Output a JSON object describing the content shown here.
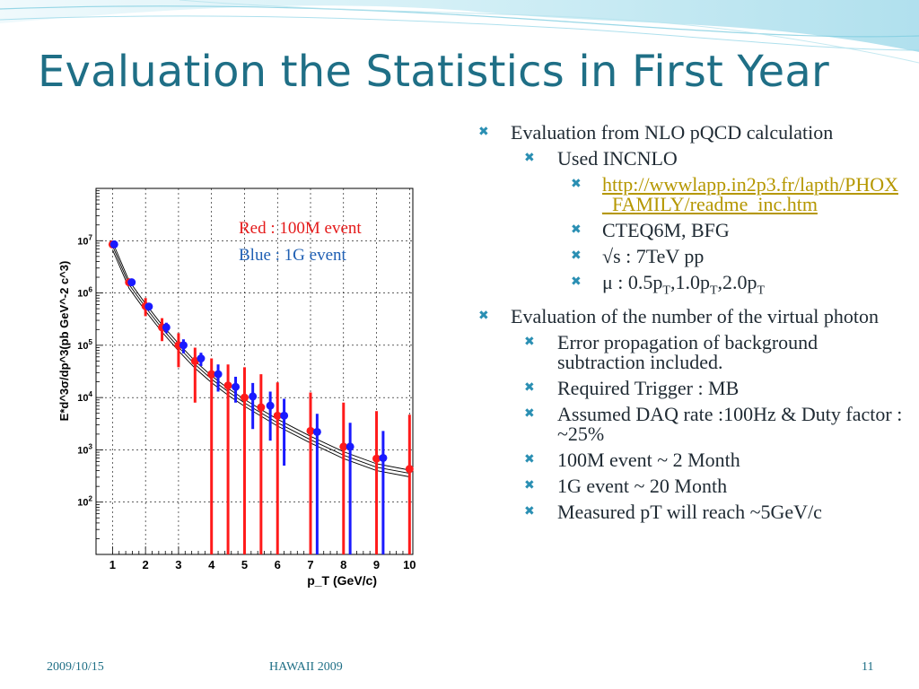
{
  "slide": {
    "title": "Evaluation the Statistics in First Year",
    "colors": {
      "title": "#1f6f86",
      "accent": "#2a8fb3",
      "link": "#b59700"
    },
    "bullets": {
      "b1": "Evaluation from NLO pQCD calculation",
      "b1_1": "Used INCNLO",
      "b1_1_1": "http://wwwlapp.in2p3.fr/lapth/PHOX_FAMILY/readme_inc.htm",
      "b1_1_2": "CTEQ6M, BFG",
      "b1_1_3": "√s : 7TeV pp",
      "b1_1_4": {
        "prefix": "μ : 0.5p",
        "sub": "T",
        "mid1": ",1.0p",
        "mid2": ",2.0p"
      },
      "b2": "Evaluation of the number of the virtual photon",
      "b2_1": "Error propagation of background subtraction included.",
      "b2_2": "Required Trigger : MB",
      "b2_3": "Assumed DAQ rate :100Hz & Duty factor : ~25%",
      "b2_4": "100M event ~ 2 Month",
      "b2_5": "1G event ~ 20 Month",
      "b2_6": "Measured pT will reach ~5GeV/c",
      "marker_icon": "x-bullet-icon"
    },
    "footer": {
      "date": "2009/10/15",
      "event": "HAWAII 2009",
      "page": "11"
    }
  },
  "chart_data": {
    "type": "scatter",
    "xlabel": "p_T (GeV/c)",
    "ylabel": "E*d^3σ/dp^3(pb GeV^-2 c^3)",
    "xlim": [
      0.5,
      10.1
    ],
    "ylog": true,
    "ylim": [
      10,
      100000000
    ],
    "xticks": [
      "1",
      "2",
      "3",
      "4",
      "5",
      "6",
      "7",
      "8",
      "9",
      "10"
    ],
    "yticks": [
      "10^2",
      "10^3",
      "10^4",
      "10^5",
      "10^6",
      "10^7"
    ],
    "grid": true,
    "annotations": [
      "Red : 100M event",
      "Blue : 1G event"
    ],
    "curves": [
      {
        "x": [
          1,
          1.5,
          2,
          2.5,
          3,
          3.5,
          4,
          4.5,
          5,
          5.5,
          6,
          7,
          8,
          9,
          10
        ],
        "y": [
          9500000,
          1700000,
          620000,
          245000,
          108000,
          50000,
          26000,
          15000,
          9200,
          5900,
          3850,
          1820,
          920,
          540,
          410
        ]
      },
      {
        "x": [
          1,
          1.5,
          2,
          2.5,
          3,
          3.5,
          4,
          4.5,
          5,
          5.5,
          6,
          7,
          8,
          9,
          10
        ],
        "y": [
          8000000,
          1450000,
          530000,
          210000,
          92000,
          43000,
          22500,
          13000,
          7900,
          5100,
          3300,
          1560,
          790,
          465,
          355
        ]
      },
      {
        "x": [
          1,
          1.5,
          2,
          2.5,
          3,
          3.5,
          4,
          4.5,
          5,
          5.5,
          6,
          7,
          8,
          9,
          10
        ],
        "y": [
          6700000,
          1230000,
          450000,
          180000,
          78000,
          36500,
          19300,
          11100,
          6800,
          4400,
          2850,
          1350,
          680,
          400,
          305
        ]
      }
    ],
    "series": [
      {
        "name": "Red : 100M event",
        "color": "#ff1a1a",
        "points": [
          {
            "x": 1.0,
            "y": 8500000,
            "lo": 7800000,
            "hi": 9300000
          },
          {
            "x": 1.5,
            "y": 1600000,
            "lo": 1400000,
            "hi": 1850000
          },
          {
            "x": 2.0,
            "y": 560000,
            "lo": 360000,
            "hi": 800000
          },
          {
            "x": 2.5,
            "y": 220000,
            "lo": 120000,
            "hi": 330000
          },
          {
            "x": 3.0,
            "y": 100000,
            "lo": 38000,
            "hi": 170000
          },
          {
            "x": 3.5,
            "y": 50000,
            "lo": 8000,
            "hi": 90000
          },
          {
            "x": 4.0,
            "y": 28000,
            "lo": 10,
            "hi": 56000
          },
          {
            "x": 4.5,
            "y": 17000,
            "lo": 10,
            "hi": 43000
          },
          {
            "x": 5.0,
            "y": 10000,
            "lo": 10,
            "hi": 38000
          },
          {
            "x": 5.5,
            "y": 6500,
            "lo": 10,
            "hi": 28000
          },
          {
            "x": 6.0,
            "y": 4500,
            "lo": 10,
            "hi": 19500
          },
          {
            "x": 7.0,
            "y": 2300,
            "lo": 10,
            "hi": 12500
          },
          {
            "x": 8.0,
            "y": 1150,
            "lo": 10,
            "hi": 8000
          },
          {
            "x": 9.0,
            "y": 680,
            "lo": 10,
            "hi": 5500
          },
          {
            "x": 10.0,
            "y": 430,
            "lo": 10,
            "hi": 4700
          }
        ]
      },
      {
        "name": "Blue : 1G event",
        "color": "#1a1aff",
        "points": [
          {
            "x": 1.05,
            "y": 8500000,
            "lo": 8100000,
            "hi": 8900000
          },
          {
            "x": 1.58,
            "y": 1600000,
            "lo": 1500000,
            "hi": 1700000
          },
          {
            "x": 2.1,
            "y": 550000,
            "lo": 460000,
            "hi": 640000
          },
          {
            "x": 2.63,
            "y": 220000,
            "lo": 170000,
            "hi": 270000
          },
          {
            "x": 3.15,
            "y": 100000,
            "lo": 70000,
            "hi": 130000
          },
          {
            "x": 3.68,
            "y": 56000,
            "lo": 40000,
            "hi": 72000
          },
          {
            "x": 4.2,
            "y": 28000,
            "lo": 13000,
            "hi": 43000
          },
          {
            "x": 4.73,
            "y": 16000,
            "lo": 8000,
            "hi": 25000
          },
          {
            "x": 5.25,
            "y": 10500,
            "lo": 2500,
            "hi": 19000
          },
          {
            "x": 5.78,
            "y": 7000,
            "lo": 1500,
            "hi": 13000
          },
          {
            "x": 6.2,
            "y": 4500,
            "lo": 500,
            "hi": 9500
          },
          {
            "x": 7.2,
            "y": 2200,
            "lo": 10,
            "hi": 4900
          },
          {
            "x": 8.2,
            "y": 1150,
            "lo": 10,
            "hi": 3300
          },
          {
            "x": 9.2,
            "y": 700,
            "lo": 10,
            "hi": 2300
          }
        ]
      }
    ]
  }
}
